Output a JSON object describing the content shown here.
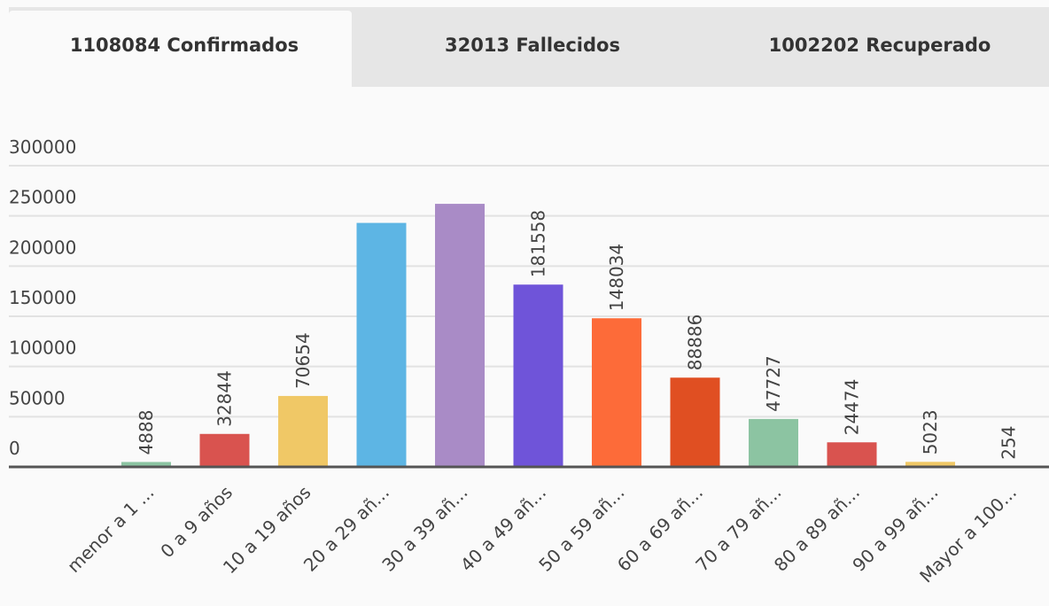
{
  "tabs": [
    "1108084 Confirmados",
    "32013 Fallecidos",
    "1002202 Recuperado"
  ],
  "chart_data": {
    "type": "bar",
    "categories": [
      "menor a 1 ...",
      "0 a 9 años",
      "10 a 19 años",
      "20 a 29 añ...",
      "30 a 39 añ...",
      "40 a 49 añ...",
      "50 a 59 añ...",
      "60 a 69 añ...",
      "70 a 79 añ...",
      "80 a 89 añ...",
      "90 a 99 añ...",
      "Mayor a 100..."
    ],
    "values": [
      4888,
      32844,
      70654,
      243000,
      262000,
      181558,
      148034,
      88886,
      47727,
      24474,
      5023,
      254
    ],
    "value_labels": [
      "4888",
      "32844",
      "70654",
      null,
      null,
      "181558",
      "148034",
      "88886",
      "47727",
      "24474",
      "5023",
      "254"
    ],
    "colors": [
      "#8cc4a2",
      "#d9534f",
      "#f0c866",
      "#5db5e4",
      "#a98bc6",
      "#6f54d9",
      "#fd6b39",
      "#e04f22",
      "#8cc4a2",
      "#d9534f",
      "#f0c866",
      "#8cc4a2"
    ],
    "ylim": [
      0,
      300000
    ],
    "yticks": [
      0,
      50000,
      100000,
      150000,
      200000,
      250000,
      300000
    ],
    "grid": true
  }
}
